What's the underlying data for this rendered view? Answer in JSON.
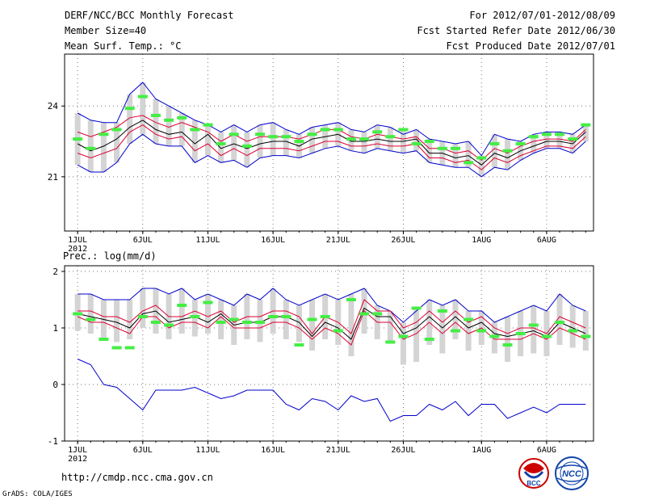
{
  "header": {
    "title": "DERF/NCC/BCC Monthly Forecast",
    "member_size": "Member Size=40",
    "variable": "Mean Surf. Temp.: °C",
    "for_range": "For 2012/07/01-2012/08/09",
    "fcst_started": "Fcst Started Refer Date 2012/06/30",
    "fcst_produced": "Fcst Produced Date 2012/07/01"
  },
  "footer": {
    "url": "http://cmdp.ncc.cma.gov.cn",
    "grads_credit": "GrADS: COLA/IGES",
    "logo1_text": "BCC",
    "logo2_text": "NCC"
  },
  "colors": {
    "ensemble_range": "#0000cc",
    "mean_line": "#000000",
    "spread_line": "#dd0033",
    "observed_mark": "#44ee44",
    "box": "#d4d4d4"
  },
  "chart_data": [
    {
      "type": "line",
      "title": "Mean Surf. Temp.: °C",
      "xlabel_year": "2012",
      "x_ticks": [
        "1JUL",
        "6JUL",
        "11JUL",
        "16JUL",
        "21JUL",
        "26JUL",
        "1AUG",
        "6AUG"
      ],
      "x_tick_days": [
        1,
        6,
        11,
        16,
        21,
        26,
        32,
        37
      ],
      "y_ticks": [
        21,
        24
      ],
      "ylim": [
        18.7,
        26.2
      ],
      "days": [
        1,
        2,
        3,
        4,
        5,
        6,
        7,
        8,
        9,
        10,
        11,
        12,
        13,
        14,
        15,
        16,
        17,
        18,
        19,
        20,
        21,
        22,
        23,
        24,
        25,
        26,
        27,
        28,
        29,
        30,
        31,
        32,
        33,
        34,
        35,
        36,
        37,
        38,
        39,
        40
      ],
      "series": [
        {
          "name": "ensemble max",
          "values": [
            23.7,
            23.4,
            23.3,
            23.3,
            24.5,
            25.0,
            24.3,
            24.0,
            23.7,
            23.4,
            23.2,
            22.9,
            23.2,
            22.9,
            23.2,
            23.3,
            23.0,
            22.8,
            23.1,
            23.2,
            23.3,
            23.0,
            22.9,
            23.2,
            23.1,
            22.8,
            23.0,
            22.6,
            22.5,
            22.4,
            22.5,
            21.9,
            22.8,
            22.6,
            22.5,
            22.8,
            22.9,
            22.9,
            22.8,
            23.2
          ]
        },
        {
          "name": "mean+1sd",
          "values": [
            22.9,
            22.7,
            22.9,
            23.1,
            23.5,
            23.6,
            23.3,
            23.1,
            23.3,
            23.1,
            22.9,
            22.5,
            22.8,
            22.5,
            22.7,
            22.7,
            22.7,
            22.6,
            22.8,
            23.0,
            23.0,
            22.7,
            22.6,
            22.8,
            22.7,
            22.6,
            22.7,
            22.2,
            22.2,
            22.0,
            22.1,
            21.7,
            22.2,
            22.0,
            22.3,
            22.5,
            22.6,
            22.6,
            22.5,
            23.0
          ]
        },
        {
          "name": "ensemble mean",
          "values": [
            22.4,
            22.1,
            22.3,
            22.6,
            23.1,
            23.4,
            23.0,
            22.8,
            22.9,
            22.4,
            22.8,
            22.2,
            22.4,
            22.2,
            22.4,
            22.5,
            22.5,
            22.3,
            22.6,
            22.7,
            22.8,
            22.5,
            22.5,
            22.6,
            22.5,
            22.5,
            22.6,
            22.0,
            22.0,
            21.8,
            21.9,
            21.5,
            22.0,
            21.8,
            22.1,
            22.3,
            22.5,
            22.5,
            22.4,
            22.9
          ]
        },
        {
          "name": "mean-1sd",
          "values": [
            22.0,
            21.8,
            22.0,
            22.2,
            22.9,
            23.2,
            22.8,
            22.6,
            22.7,
            22.1,
            22.4,
            21.9,
            22.2,
            21.9,
            22.2,
            22.2,
            22.2,
            22.1,
            22.3,
            22.5,
            22.5,
            22.3,
            22.3,
            22.4,
            22.3,
            22.3,
            22.4,
            21.8,
            21.8,
            21.6,
            21.7,
            21.3,
            21.8,
            21.6,
            21.9,
            22.1,
            22.3,
            22.3,
            22.2,
            22.7
          ]
        },
        {
          "name": "ensemble min",
          "values": [
            21.5,
            21.2,
            21.2,
            21.6,
            22.4,
            22.8,
            22.4,
            22.3,
            22.3,
            21.6,
            21.9,
            21.6,
            21.7,
            21.4,
            21.8,
            21.9,
            21.9,
            21.8,
            22.0,
            22.2,
            22.3,
            22.1,
            22.0,
            22.2,
            22.1,
            22.0,
            22.1,
            21.6,
            21.5,
            21.4,
            21.4,
            21.0,
            21.4,
            21.3,
            21.7,
            22.0,
            22.2,
            22.2,
            22.0,
            22.5
          ]
        },
        {
          "name": "observed",
          "values": [
            22.6,
            22.2,
            22.8,
            23.0,
            23.9,
            24.4,
            23.6,
            23.4,
            23.5,
            23.0,
            23.2,
            22.4,
            22.8,
            22.3,
            22.8,
            22.7,
            22.7,
            22.5,
            22.8,
            23.0,
            23.0,
            22.6,
            22.6,
            22.9,
            22.7,
            23.0,
            22.4,
            22.5,
            22.2,
            22.2,
            21.6,
            21.8,
            22.4,
            22.1,
            22.4,
            22.7,
            22.8,
            22.8,
            22.6,
            23.2
          ]
        }
      ]
    },
    {
      "type": "line",
      "title": "Prec.: log(mm/d)",
      "xlabel_year": "2012",
      "x_ticks": [
        "1JUL",
        "6JUL",
        "11JUL",
        "16JUL",
        "21JUL",
        "26JUL",
        "1AUG",
        "6AUG"
      ],
      "x_tick_days": [
        1,
        6,
        11,
        16,
        21,
        26,
        32,
        37
      ],
      "y_ticks": [
        -1,
        0,
        1,
        2
      ],
      "ylim": [
        -1,
        2.1
      ],
      "days": [
        1,
        2,
        3,
        4,
        5,
        6,
        7,
        8,
        9,
        10,
        11,
        12,
        13,
        14,
        15,
        16,
        17,
        18,
        19,
        20,
        21,
        22,
        23,
        24,
        25,
        26,
        27,
        28,
        29,
        30,
        31,
        32,
        33,
        34,
        35,
        36,
        37,
        38,
        39,
        40
      ],
      "series": [
        {
          "name": "ensemble max",
          "values": [
            1.6,
            1.6,
            1.5,
            1.5,
            1.5,
            1.7,
            1.7,
            1.6,
            1.7,
            1.5,
            1.6,
            1.5,
            1.4,
            1.6,
            1.5,
            1.7,
            1.5,
            1.4,
            1.5,
            1.6,
            1.5,
            1.6,
            1.7,
            1.4,
            1.3,
            1.1,
            1.3,
            1.5,
            1.4,
            1.5,
            1.3,
            1.3,
            1.1,
            1.2,
            1.3,
            1.4,
            1.3,
            1.6,
            1.4,
            1.3
          ]
        },
        {
          "name": "mean+1sd",
          "values": [
            1.3,
            1.3,
            1.2,
            1.2,
            1.1,
            1.3,
            1.4,
            1.2,
            1.2,
            1.3,
            1.2,
            1.3,
            1.1,
            1.2,
            1.2,
            1.3,
            1.3,
            1.2,
            0.9,
            1.2,
            1.1,
            0.9,
            1.5,
            1.3,
            1.3,
            1.0,
            1.1,
            1.3,
            1.1,
            1.3,
            1.1,
            1.2,
            1.0,
            0.9,
            1.0,
            1.0,
            0.9,
            1.2,
            1.1,
            1.0
          ]
        },
        {
          "name": "ensemble mean",
          "values": [
            1.25,
            1.2,
            1.15,
            1.1,
            1.0,
            1.25,
            1.3,
            1.1,
            1.15,
            1.2,
            1.1,
            1.25,
            1.05,
            1.1,
            1.1,
            1.2,
            1.2,
            1.1,
            0.85,
            1.1,
            1.0,
            0.8,
            1.35,
            1.2,
            1.2,
            0.9,
            1.0,
            1.2,
            1.0,
            1.2,
            1.0,
            1.1,
            0.9,
            0.85,
            0.9,
            0.95,
            0.85,
            1.1,
            1.0,
            0.9
          ]
        },
        {
          "name": "mean-1sd",
          "values": [
            1.2,
            1.1,
            1.1,
            1.0,
            0.9,
            1.2,
            1.2,
            1.0,
            1.1,
            1.1,
            1.0,
            1.2,
            1.0,
            1.0,
            1.0,
            1.1,
            1.1,
            1.0,
            0.8,
            1.0,
            0.9,
            0.7,
            1.3,
            1.1,
            1.1,
            0.8,
            0.9,
            1.1,
            0.9,
            1.1,
            0.9,
            1.0,
            0.8,
            0.8,
            0.8,
            0.9,
            0.8,
            1.0,
            0.9,
            0.8
          ]
        },
        {
          "name": "ensemble min",
          "values": [
            0.95,
            0.9,
            0.8,
            0.75,
            0.8,
            1.0,
            0.9,
            0.8,
            0.9,
            0.85,
            0.9,
            0.8,
            0.7,
            0.8,
            0.75,
            0.9,
            0.8,
            0.75,
            0.6,
            0.8,
            0.7,
            0.5,
            0.9,
            0.8,
            0.75,
            0.35,
            0.4,
            0.7,
            0.55,
            0.8,
            0.6,
            0.7,
            0.55,
            0.4,
            0.5,
            0.55,
            0.5,
            0.7,
            0.65,
            0.6
          ]
        },
        {
          "name": "observed",
          "values": [
            1.25,
            1.15,
            0.8,
            0.65,
            0.65,
            1.2,
            1.1,
            1.05,
            1.4,
            1.2,
            1.45,
            1.1,
            1.15,
            1.1,
            1.1,
            1.2,
            1.2,
            0.7,
            1.15,
            1.2,
            0.95,
            1.5,
            1.25,
            1.25,
            0.75,
            0.85,
            1.35,
            0.8,
            1.3,
            0.95,
            1.15,
            0.95,
            0.85,
            0.7,
            0.9,
            1.05,
            0.85,
            1.1,
            0.95,
            0.85
          ]
        },
        {
          "name": "lower envelope",
          "values": [
            0.45,
            0.35,
            0.0,
            -0.05,
            -0.25,
            -0.45,
            -0.1,
            -0.1,
            -0.1,
            -0.05,
            -0.15,
            -0.25,
            -0.2,
            -0.1,
            -0.1,
            -0.1,
            -0.35,
            -0.45,
            -0.25,
            -0.3,
            -0.45,
            -0.2,
            -0.3,
            -0.25,
            -0.65,
            -0.55,
            -0.55,
            -0.35,
            -0.45,
            -0.3,
            -0.55,
            -0.35,
            -0.35,
            -0.6,
            -0.5,
            -0.4,
            -0.5,
            -0.35,
            -0.35,
            -0.35
          ]
        }
      ]
    }
  ]
}
